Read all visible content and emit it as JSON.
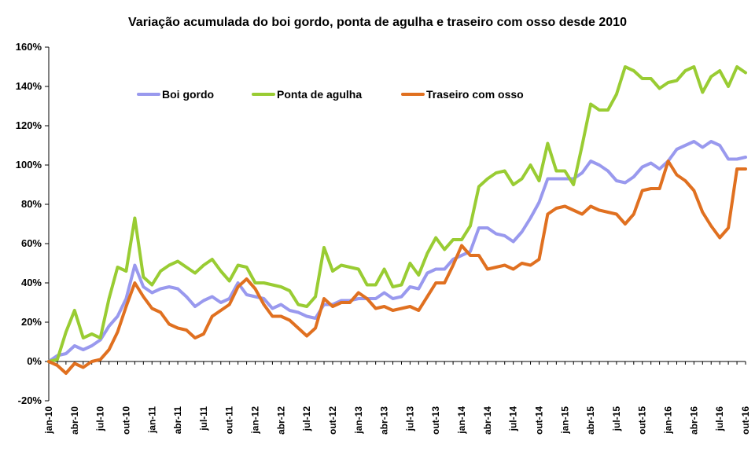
{
  "chart_data": {
    "type": "line",
    "title": "Variação acumulada do boi gordo, ponta de agulha e traseiro com osso desde 2010",
    "xlabel": "",
    "ylabel": "",
    "ylim": [
      -20,
      160
    ],
    "yticks": [
      -20,
      0,
      20,
      40,
      60,
      80,
      100,
      120,
      140,
      160
    ],
    "ytick_labels": [
      "-20%",
      "0%",
      "20%",
      "40%",
      "60%",
      "80%",
      "100%",
      "120%",
      "140%",
      "160%"
    ],
    "x_tick_labels": [
      "jan-10",
      "abr-10",
      "jul-10",
      "out-10",
      "jan-11",
      "abr-11",
      "jul-11",
      "out-11",
      "jan-12",
      "abr-12",
      "jul-12",
      "out-12",
      "jan-13",
      "abr-13",
      "jul-13",
      "out-13",
      "jan-14",
      "abr-14",
      "jul-14",
      "out-14",
      "jan-15",
      "abr-15",
      "jul-15",
      "out-15",
      "jan-16",
      "abr-16",
      "jul-16",
      "out-16"
    ],
    "n_points": 82,
    "grid": false,
    "legend": "top-left, inside plot",
    "series": [
      {
        "name": "Boi gordo",
        "color": "#9999ee",
        "values": [
          0,
          3,
          4,
          8,
          6,
          8,
          11,
          18,
          23,
          32,
          49,
          38,
          35,
          37,
          38,
          37,
          33,
          28,
          31,
          33,
          30,
          32,
          40,
          34,
          33,
          32,
          27,
          29,
          26,
          25,
          23,
          22,
          29,
          29,
          31,
          31,
          32,
          32,
          32,
          35,
          32,
          33,
          38,
          37,
          45,
          47,
          47,
          52,
          54,
          56,
          68,
          68,
          65,
          64,
          61,
          66,
          73,
          81,
          93,
          93,
          93,
          93,
          96,
          102,
          100,
          97,
          92,
          91,
          94,
          99,
          101,
          98,
          102,
          108,
          110,
          112,
          109,
          112,
          110,
          103,
          103,
          104
        ]
      },
      {
        "name": "Ponta de agulha",
        "color": "#99cc33",
        "values": [
          0,
          1,
          15,
          26,
          12,
          14,
          12,
          32,
          48,
          46,
          73,
          43,
          39,
          46,
          49,
          51,
          48,
          45,
          49,
          52,
          46,
          41,
          49,
          48,
          40,
          40,
          39,
          38,
          36,
          29,
          28,
          33,
          58,
          46,
          49,
          48,
          47,
          39,
          39,
          47,
          38,
          39,
          50,
          44,
          55,
          63,
          57,
          62,
          62,
          69,
          89,
          93,
          96,
          97,
          90,
          93,
          100,
          92,
          111,
          97,
          97,
          90,
          110,
          131,
          128,
          128,
          136,
          150,
          148,
          144,
          144,
          139,
          142,
          143,
          148,
          150,
          137,
          145,
          148,
          140,
          150,
          147
        ]
      },
      {
        "name": "Traseiro com osso",
        "color": "#e07020",
        "values": [
          0,
          -2,
          -6,
          -1,
          -3,
          0,
          1,
          6,
          15,
          28,
          40,
          33,
          27,
          25,
          19,
          17,
          16,
          12,
          14,
          23,
          26,
          29,
          38,
          42,
          37,
          29,
          23,
          23,
          21,
          17,
          13,
          17,
          32,
          28,
          30,
          30,
          35,
          32,
          27,
          28,
          26,
          27,
          28,
          26,
          33,
          40,
          40,
          49,
          59,
          54,
          54,
          47,
          48,
          49,
          47,
          50,
          49,
          52,
          75,
          78,
          79,
          77,
          75,
          79,
          77,
          76,
          75,
          70,
          75,
          87,
          88,
          88,
          102,
          95,
          92,
          87,
          76,
          69,
          63,
          68,
          98,
          98
        ]
      }
    ]
  }
}
